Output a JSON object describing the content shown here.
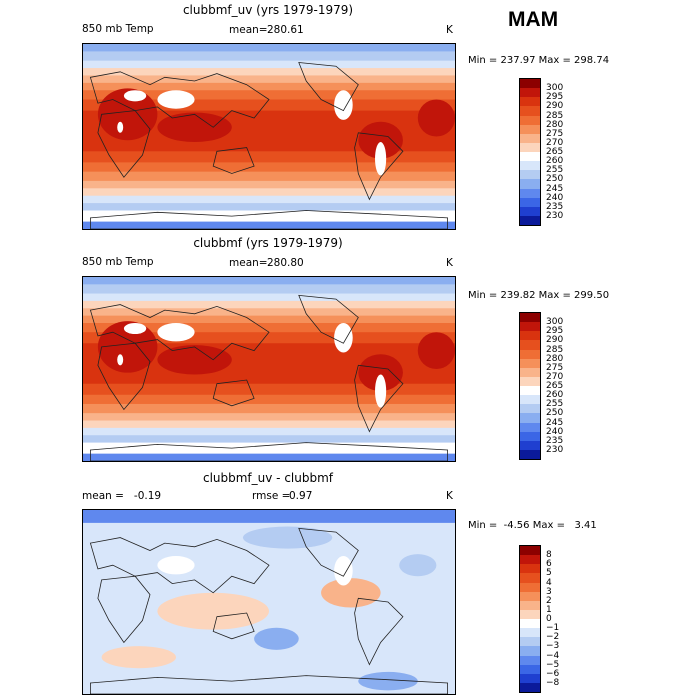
{
  "season": "MAM",
  "panels": [
    {
      "title": "clubbmf_uv (yrs 1979-1979)",
      "left_label": "850 mb Temp",
      "mean_label": "mean=",
      "mean_value": "280.61",
      "units": "K",
      "minmax": "Min = 237.97 Max = 298.74"
    },
    {
      "title": "clubbmf (yrs 1979-1979)",
      "left_label": "850 mb Temp",
      "mean_label": "mean=",
      "mean_value": "280.80",
      "units": "K",
      "minmax": "Min = 239.82 Max = 299.50"
    },
    {
      "title": "clubbmf_uv - clubbmf",
      "left_label": "mean =   -0.19",
      "mean_label": "rmse =",
      "mean_value": "0.97",
      "units": "K",
      "minmax": "Min =  -4.56 Max =   3.41"
    }
  ],
  "chart_data": [
    {
      "type": "heatmap",
      "title": "clubbmf_uv (yrs 1979-1979)",
      "variable": "850 mb Temp",
      "units": "K",
      "mean": 280.61,
      "min": 237.97,
      "max": 298.74,
      "colorbar_levels": [
        300,
        295,
        290,
        285,
        280,
        275,
        270,
        265,
        260,
        255,
        250,
        245,
        240,
        235,
        230
      ],
      "colorbar_colors": [
        "#8c0000",
        "#c1150a",
        "#d9330f",
        "#e6501e",
        "#ef6e35",
        "#f5905a",
        "#f9b38a",
        "#fcd5bc",
        "#ffffff",
        "#d8e6fa",
        "#b4ccf2",
        "#8aaef0",
        "#5f88ee",
        "#3b66e6",
        "#1f3fd0",
        "#0b1a9a"
      ]
    },
    {
      "type": "heatmap",
      "title": "clubbmf (yrs 1979-1979)",
      "variable": "850 mb Temp",
      "units": "K",
      "mean": 280.8,
      "min": 239.82,
      "max": 299.5,
      "colorbar_levels": [
        300,
        295,
        290,
        285,
        280,
        275,
        270,
        265,
        260,
        255,
        250,
        245,
        240,
        235,
        230
      ],
      "colorbar_colors": [
        "#8c0000",
        "#c1150a",
        "#d9330f",
        "#e6501e",
        "#ef6e35",
        "#f5905a",
        "#f9b38a",
        "#fcd5bc",
        "#ffffff",
        "#d8e6fa",
        "#b4ccf2",
        "#8aaef0",
        "#5f88ee",
        "#3b66e6",
        "#1f3fd0",
        "#0b1a9a"
      ]
    },
    {
      "type": "heatmap",
      "title": "clubbmf_uv - clubbmf",
      "units": "K",
      "mean": -0.19,
      "rmse": 0.97,
      "min": -4.56,
      "max": 3.41,
      "colorbar_levels": [
        8,
        6,
        5,
        4,
        3,
        2,
        1,
        0,
        -1,
        -2,
        -3,
        -4,
        -5,
        -6,
        -8
      ],
      "colorbar_level_labels": [
        "8",
        "6",
        "5",
        "4",
        "3",
        "2",
        "1",
        "0",
        "−1",
        "−2",
        "−3",
        "−4",
        "−5",
        "−6",
        "−8"
      ],
      "colorbar_colors": [
        "#8c0000",
        "#c1150a",
        "#d9330f",
        "#e6501e",
        "#ef6e35",
        "#f5905a",
        "#f9b38a",
        "#fcd5bc",
        "#ffffff",
        "#d8e6fa",
        "#b4ccf2",
        "#8aaef0",
        "#5f88ee",
        "#3b66e6",
        "#1f3fd0",
        "#0b1a9a"
      ]
    }
  ]
}
